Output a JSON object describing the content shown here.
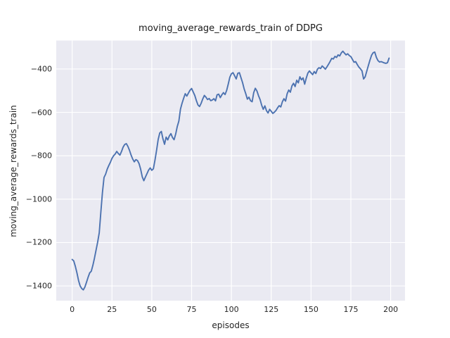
{
  "chart_data": {
    "type": "line",
    "title": "moving_average_rewards_train of DDPG",
    "xlabel": "episodes",
    "ylabel": "moving_average_rewards_train",
    "x_ticks": [
      0,
      25,
      50,
      75,
      100,
      125,
      150,
      175,
      200
    ],
    "y_ticks": [
      -400,
      -600,
      -800,
      -1000,
      -1200,
      -1400
    ],
    "xlim": [
      -10,
      209
    ],
    "ylim": [
      -1468,
      -269
    ],
    "grid": true,
    "legend": null,
    "style": "seaborn-darkgrid",
    "colors": {
      "line": "#4C72B0",
      "plot_background": "#EAEAF2",
      "gridline": "#FFFFFF",
      "figure_background": "#FFFFFF",
      "text": "#262626"
    },
    "series": [
      {
        "name": "moving_average_rewards_train",
        "x_start": 0,
        "x_step": 1,
        "values": [
          -1278,
          -1285,
          -1310,
          -1340,
          -1375,
          -1400,
          -1412,
          -1418,
          -1405,
          -1383,
          -1360,
          -1340,
          -1332,
          -1305,
          -1272,
          -1235,
          -1198,
          -1155,
          -1060,
          -970,
          -900,
          -885,
          -862,
          -845,
          -830,
          -812,
          -800,
          -792,
          -780,
          -790,
          -797,
          -780,
          -760,
          -748,
          -744,
          -757,
          -775,
          -797,
          -815,
          -828,
          -818,
          -822,
          -836,
          -862,
          -897,
          -915,
          -898,
          -882,
          -866,
          -856,
          -867,
          -860,
          -820,
          -775,
          -725,
          -695,
          -688,
          -722,
          -747,
          -714,
          -727,
          -709,
          -698,
          -716,
          -726,
          -700,
          -665,
          -640,
          -585,
          -558,
          -535,
          -514,
          -525,
          -511,
          -498,
          -490,
          -506,
          -522,
          -546,
          -566,
          -573,
          -558,
          -538,
          -522,
          -530,
          -541,
          -536,
          -546,
          -543,
          -537,
          -547,
          -519,
          -516,
          -532,
          -519,
          -509,
          -518,
          -499,
          -470,
          -438,
          -422,
          -417,
          -431,
          -446,
          -420,
          -417,
          -440,
          -463,
          -492,
          -514,
          -539,
          -530,
          -546,
          -551,
          -509,
          -489,
          -501,
          -523,
          -541,
          -567,
          -586,
          -570,
          -592,
          -603,
          -586,
          -595,
          -605,
          -599,
          -591,
          -579,
          -569,
          -575,
          -551,
          -537,
          -548,
          -514,
          -497,
          -507,
          -478,
          -466,
          -481,
          -452,
          -464,
          -436,
          -450,
          -441,
          -470,
          -442,
          -419,
          -409,
          -418,
          -426,
          -412,
          -421,
          -401,
          -394,
          -398,
          -386,
          -393,
          -401,
          -390,
          -378,
          -365,
          -351,
          -354,
          -342,
          -347,
          -335,
          -340,
          -326,
          -318,
          -327,
          -335,
          -330,
          -338,
          -343,
          -356,
          -369,
          -366,
          -379,
          -391,
          -399,
          -409,
          -446,
          -436,
          -410,
          -384,
          -359,
          -337,
          -325,
          -322,
          -346,
          -361,
          -368,
          -366,
          -369,
          -372,
          -374,
          -371,
          -350
        ]
      }
    ]
  }
}
